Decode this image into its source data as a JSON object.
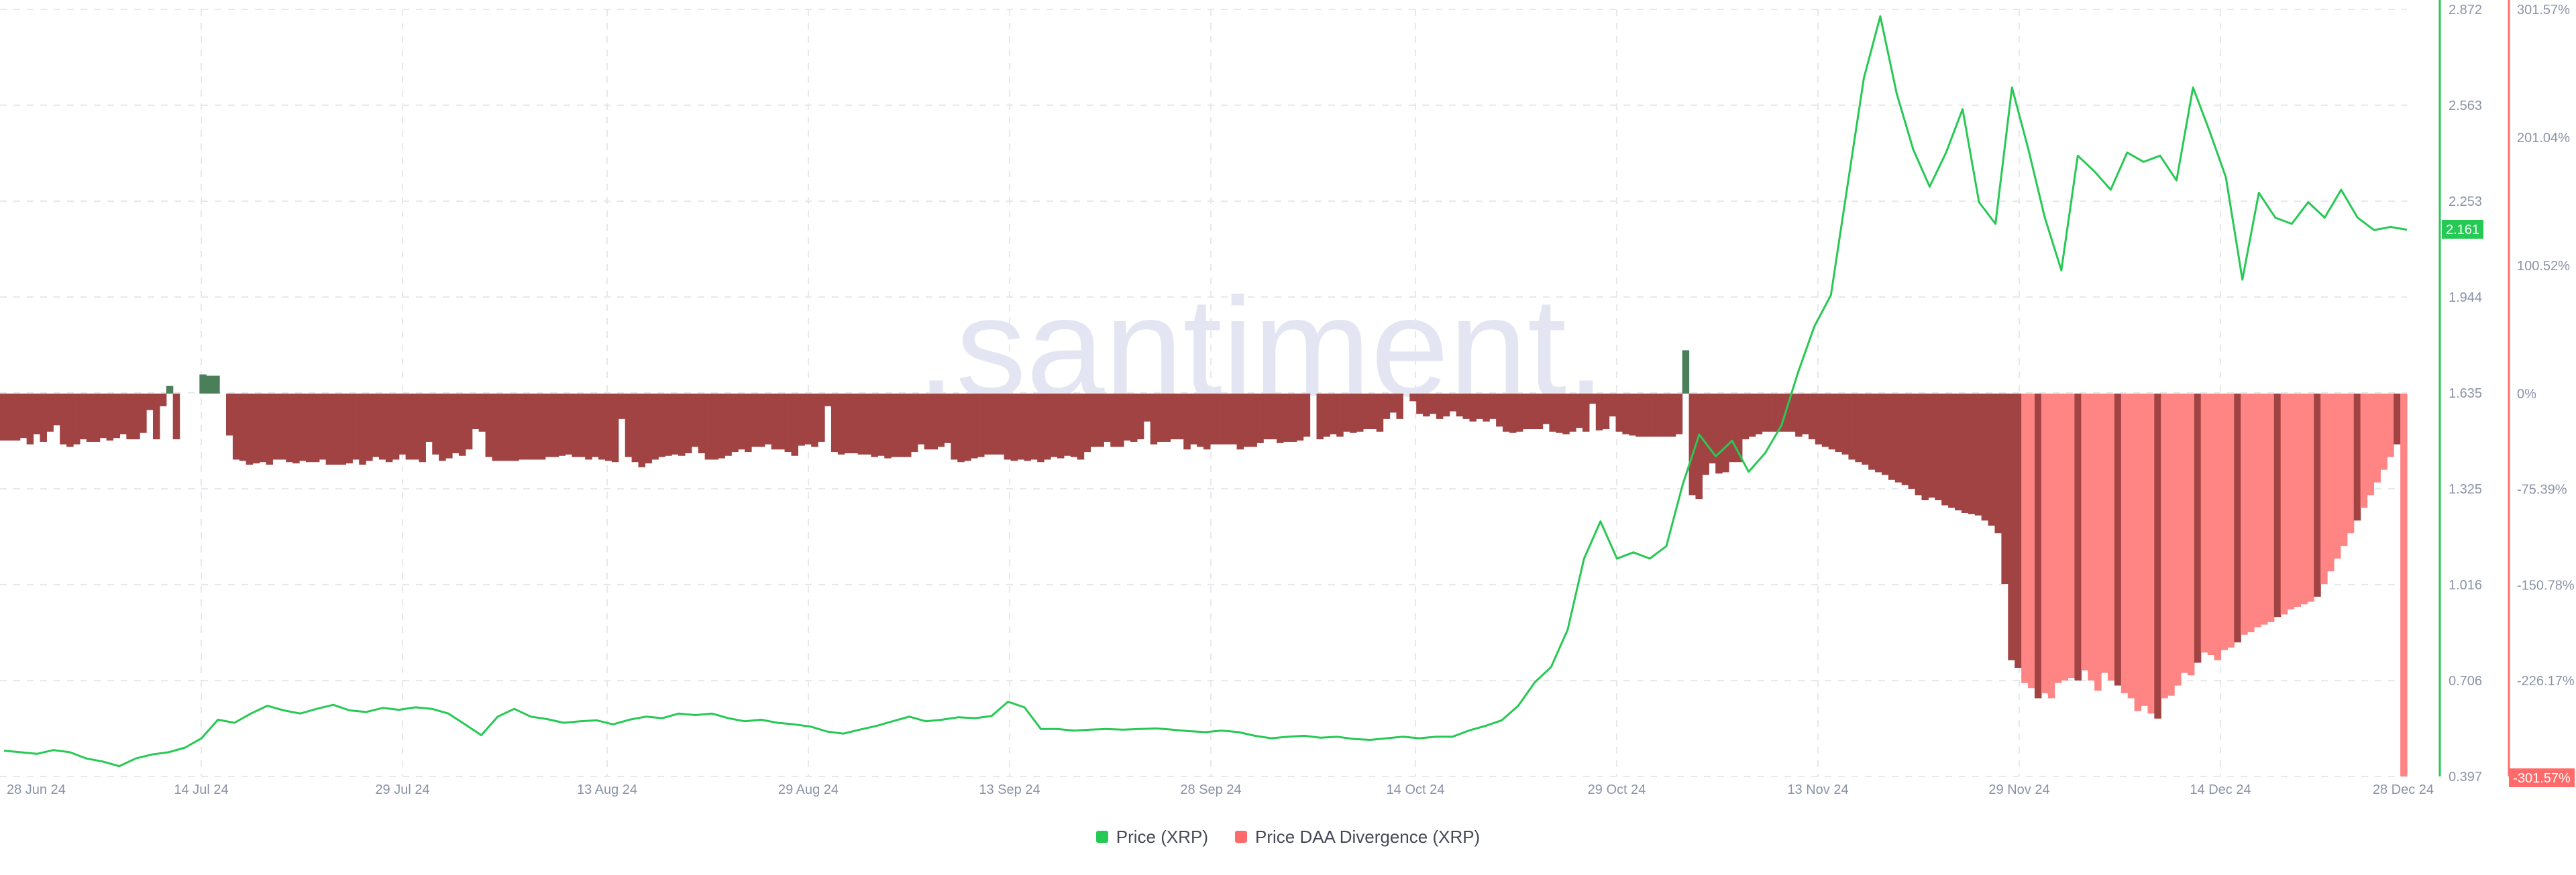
{
  "watermark": ".santiment.",
  "current_price_label": "2.161",
  "min_div_label": "-301.57%",
  "legend": [
    {
      "label": "Price (XRP)",
      "color": "#26c953"
    },
    {
      "label": "Price DAA Divergence (XRP)",
      "color": "#ff6b6b"
    }
  ],
  "chart_data": {
    "type": "line",
    "x_start": "28 Jun 24",
    "x_end": "28 Dec 24",
    "x_ticks": [
      "28 Jun 24",
      "14 Jul 24",
      "29 Jul 24",
      "13 Aug 24",
      "29 Aug 24",
      "13 Sep 24",
      "28 Sep 24",
      "14 Oct 24",
      "29 Oct 24",
      "13 Nov 24",
      "29 Nov 24",
      "14 Dec 24",
      "28 Dec 24"
    ],
    "y_left_ticks": [
      "2.872",
      "2.563",
      "2.253",
      "1.944",
      "1.635",
      "1.325",
      "1.016",
      "0.706",
      "0.397"
    ],
    "y_left_range": [
      0.397,
      2.872
    ],
    "y_right_ticks": [
      "301.57%",
      "201.04%",
      "100.52%",
      "0%",
      "-75.39%",
      "-150.78%",
      "-226.17%",
      "-301.57%"
    ],
    "y_right_range": [
      -301.57,
      301.57
    ],
    "grid": true,
    "legend_position": "bottom-center",
    "colors": {
      "price": "#26c953",
      "div_pos": "#4a7f5a",
      "div_neg_dark": "#a14343",
      "div_neg_light": "#ff8585",
      "right_axis": "#ff6b6b"
    },
    "series": [
      {
        "name": "Price (XRP)",
        "color": "#26c953",
        "points": [
          [
            0,
            0.48
          ],
          [
            2,
            0.475
          ],
          [
            4,
            0.47
          ],
          [
            6,
            0.482
          ],
          [
            8,
            0.475
          ],
          [
            10,
            0.455
          ],
          [
            12,
            0.445
          ],
          [
            14,
            0.43
          ],
          [
            16,
            0.455
          ],
          [
            18,
            0.468
          ],
          [
            20,
            0.475
          ],
          [
            22,
            0.49
          ],
          [
            24,
            0.52
          ],
          [
            26,
            0.58
          ],
          [
            28,
            0.57
          ],
          [
            30,
            0.6
          ],
          [
            32,
            0.625
          ],
          [
            34,
            0.61
          ],
          [
            36,
            0.6
          ],
          [
            38,
            0.615
          ],
          [
            40,
            0.628
          ],
          [
            42,
            0.61
          ],
          [
            44,
            0.605
          ],
          [
            46,
            0.618
          ],
          [
            48,
            0.612
          ],
          [
            50,
            0.62
          ],
          [
            52,
            0.615
          ],
          [
            54,
            0.6
          ],
          [
            56,
            0.565
          ],
          [
            58,
            0.53
          ],
          [
            60,
            0.59
          ],
          [
            62,
            0.615
          ],
          [
            64,
            0.59
          ],
          [
            66,
            0.582
          ],
          [
            68,
            0.57
          ],
          [
            70,
            0.575
          ],
          [
            72,
            0.578
          ],
          [
            74,
            0.565
          ],
          [
            76,
            0.58
          ],
          [
            78,
            0.59
          ],
          [
            80,
            0.585
          ],
          [
            82,
            0.6
          ],
          [
            84,
            0.595
          ],
          [
            86,
            0.6
          ],
          [
            88,
            0.585
          ],
          [
            90,
            0.575
          ],
          [
            92,
            0.58
          ],
          [
            94,
            0.57
          ],
          [
            96,
            0.565
          ],
          [
            98,
            0.558
          ],
          [
            100,
            0.542
          ],
          [
            102,
            0.535
          ],
          [
            104,
            0.548
          ],
          [
            106,
            0.56
          ],
          [
            108,
            0.575
          ],
          [
            110,
            0.59
          ],
          [
            112,
            0.575
          ],
          [
            114,
            0.58
          ],
          [
            116,
            0.588
          ],
          [
            118,
            0.585
          ],
          [
            120,
            0.592
          ],
          [
            122,
            0.638
          ],
          [
            124,
            0.62
          ],
          [
            126,
            0.55
          ],
          [
            128,
            0.55
          ],
          [
            130,
            0.545
          ],
          [
            132,
            0.548
          ],
          [
            134,
            0.55
          ],
          [
            136,
            0.548
          ],
          [
            138,
            0.55
          ],
          [
            140,
            0.552
          ],
          [
            142,
            0.548
          ],
          [
            144,
            0.543
          ],
          [
            146,
            0.54
          ],
          [
            148,
            0.545
          ],
          [
            150,
            0.54
          ],
          [
            152,
            0.528
          ],
          [
            154,
            0.52
          ],
          [
            156,
            0.525
          ],
          [
            158,
            0.528
          ],
          [
            160,
            0.522
          ],
          [
            162,
            0.525
          ],
          [
            164,
            0.518
          ],
          [
            166,
            0.515
          ],
          [
            168,
            0.52
          ],
          [
            170,
            0.525
          ],
          [
            172,
            0.52
          ],
          [
            174,
            0.525
          ],
          [
            176,
            0.525
          ],
          [
            178,
            0.545
          ],
          [
            180,
            0.56
          ],
          [
            182,
            0.578
          ],
          [
            184,
            0.625
          ],
          [
            186,
            0.7
          ],
          [
            188,
            0.75
          ],
          [
            190,
            0.87
          ],
          [
            192,
            1.1
          ],
          [
            194,
            1.22
          ],
          [
            196,
            1.1
          ],
          [
            198,
            1.12
          ],
          [
            200,
            1.1
          ],
          [
            202,
            1.14
          ],
          [
            204,
            1.34
          ],
          [
            206,
            1.5
          ],
          [
            208,
            1.43
          ],
          [
            210,
            1.48
          ],
          [
            212,
            1.38
          ],
          [
            214,
            1.44
          ],
          [
            216,
            1.53
          ],
          [
            218,
            1.7
          ],
          [
            220,
            1.85
          ],
          [
            222,
            1.95
          ],
          [
            224,
            2.3
          ],
          [
            226,
            2.65
          ],
          [
            228,
            2.85
          ],
          [
            230,
            2.6
          ],
          [
            232,
            2.42
          ],
          [
            234,
            2.3
          ],
          [
            236,
            2.41
          ],
          [
            238,
            2.55
          ],
          [
            240,
            2.25
          ],
          [
            242,
            2.18
          ],
          [
            244,
            2.62
          ],
          [
            246,
            2.42
          ],
          [
            248,
            2.2
          ],
          [
            250,
            2.03
          ],
          [
            252,
            2.4
          ],
          [
            254,
            2.35
          ],
          [
            256,
            2.29
          ],
          [
            258,
            2.41
          ],
          [
            260,
            2.38
          ],
          [
            262,
            2.4
          ],
          [
            264,
            2.32
          ],
          [
            266,
            2.62
          ],
          [
            268,
            2.48
          ],
          [
            270,
            2.33
          ],
          [
            272,
            2.0
          ],
          [
            274,
            2.28
          ],
          [
            276,
            2.2
          ],
          [
            278,
            2.18
          ],
          [
            280,
            2.25
          ],
          [
            282,
            2.2
          ],
          [
            284,
            2.29
          ],
          [
            286,
            2.2
          ],
          [
            288,
            2.16
          ],
          [
            290,
            2.17
          ],
          [
            292,
            2.161
          ]
        ]
      },
      {
        "name": "Price DAA Divergence (XRP)",
        "color": "#ff6b6b",
        "values": [
          -37,
          -37,
          -37,
          -35,
          -40,
          -32,
          -38,
          -30,
          -25,
          -40,
          -42,
          -40,
          -36,
          -38,
          -38,
          -35,
          -37,
          -35,
          -32,
          -36,
          -36,
          -31,
          -13,
          -36,
          -10,
          6,
          -36,
          0,
          0,
          0,
          15,
          14,
          14,
          0,
          -33,
          -52,
          -53,
          -56,
          -55,
          -54,
          -56,
          -52,
          -52,
          -54,
          -55,
          -53,
          -54,
          -54,
          -52,
          -56,
          -56,
          -56,
          -55,
          -52,
          -56,
          -53,
          -50,
          -52,
          -54,
          -52,
          -48,
          -52,
          -52,
          -54,
          -38,
          -48,
          -53,
          -51,
          -47,
          -49,
          -44,
          -28,
          -30,
          -50,
          -53,
          -53,
          -53,
          -53,
          -52,
          -52,
          -52,
          -52,
          -50,
          -50,
          -49,
          -48,
          -50,
          -50,
          -52,
          -50,
          -52,
          -53,
          -54,
          -20,
          -50,
          -54,
          -58,
          -55,
          -52,
          -50,
          -49,
          -48,
          -49,
          -47,
          -42,
          -47,
          -52,
          -52,
          -51,
          -49,
          -46,
          -44,
          -46,
          -42,
          -42,
          -40,
          -44,
          -44,
          -46,
          -49,
          -41,
          -40,
          -42,
          -38,
          -10,
          -46,
          -48,
          -47,
          -47,
          -48,
          -48,
          -50,
          -49,
          -51,
          -50,
          -50,
          -50,
          -46,
          -40,
          -44,
          -44,
          -42,
          -39,
          -52,
          -54,
          -53,
          -51,
          -50,
          -48,
          -48,
          -48,
          -52,
          -53,
          -52,
          -53,
          -52,
          -54,
          -52,
          -50,
          -51,
          -49,
          -50,
          -52,
          -46,
          -42,
          -42,
          -38,
          -42,
          -42,
          -37,
          -38,
          -36,
          -22,
          -40,
          -38,
          -38,
          -36,
          -36,
          -44,
          -40,
          -42,
          -44,
          -40,
          -40,
          -40,
          -40,
          -44,
          -42,
          -42,
          -39,
          -36,
          -36,
          -39,
          -38,
          -38,
          -37,
          -34,
          0,
          -36,
          -34,
          -32,
          -34,
          -30,
          -31,
          -30,
          -28,
          -28,
          -30,
          -20,
          -15,
          -20,
          0,
          -6,
          -16,
          -18,
          -16,
          -20,
          -18,
          -14,
          -18,
          -20,
          -22,
          -20,
          -22,
          -20,
          -26,
          -30,
          -31,
          -30,
          -28,
          -28,
          -28,
          -24,
          -30,
          -31,
          -32,
          -30,
          -27,
          -30,
          -8,
          -29,
          -28,
          -18,
          -30,
          -32,
          -33,
          -34,
          -34,
          -34,
          -34,
          -34,
          -34,
          -32,
          34,
          -80,
          -83,
          -64,
          -55,
          -63,
          -62,
          -54,
          -54,
          -36,
          -34,
          -32,
          -30,
          -30,
          -30,
          -30,
          -30,
          -34,
          -32,
          -36,
          -40,
          -42,
          -44,
          -46,
          -48,
          -52,
          -54,
          -56,
          -60,
          -62,
          -64,
          -68,
          -70,
          -72,
          -75,
          -80,
          -84,
          -82,
          -84,
          -88,
          -90,
          -92,
          -94,
          -95,
          -96,
          -100,
          -104,
          -110,
          -150,
          -210,
          -216,
          -228,
          -232,
          -240,
          -236,
          -240,
          -228,
          -226,
          -224,
          -226,
          -218,
          -226,
          -234,
          -220,
          -226,
          -230,
          -236,
          -240,
          -250,
          -246,
          -252,
          -256,
          -240,
          -238,
          -230,
          -220,
          -222,
          -212,
          -204,
          -206,
          -210,
          -202,
          -200,
          -196,
          -190,
          -188,
          -184,
          -182,
          -180,
          -176,
          -174,
          -170,
          -168,
          -166,
          -164,
          -160,
          -150,
          -140,
          -130,
          -120,
          -110,
          -100,
          -90,
          -80,
          -70,
          -60,
          -50,
          -40,
          -301.57
        ]
      }
    ]
  }
}
